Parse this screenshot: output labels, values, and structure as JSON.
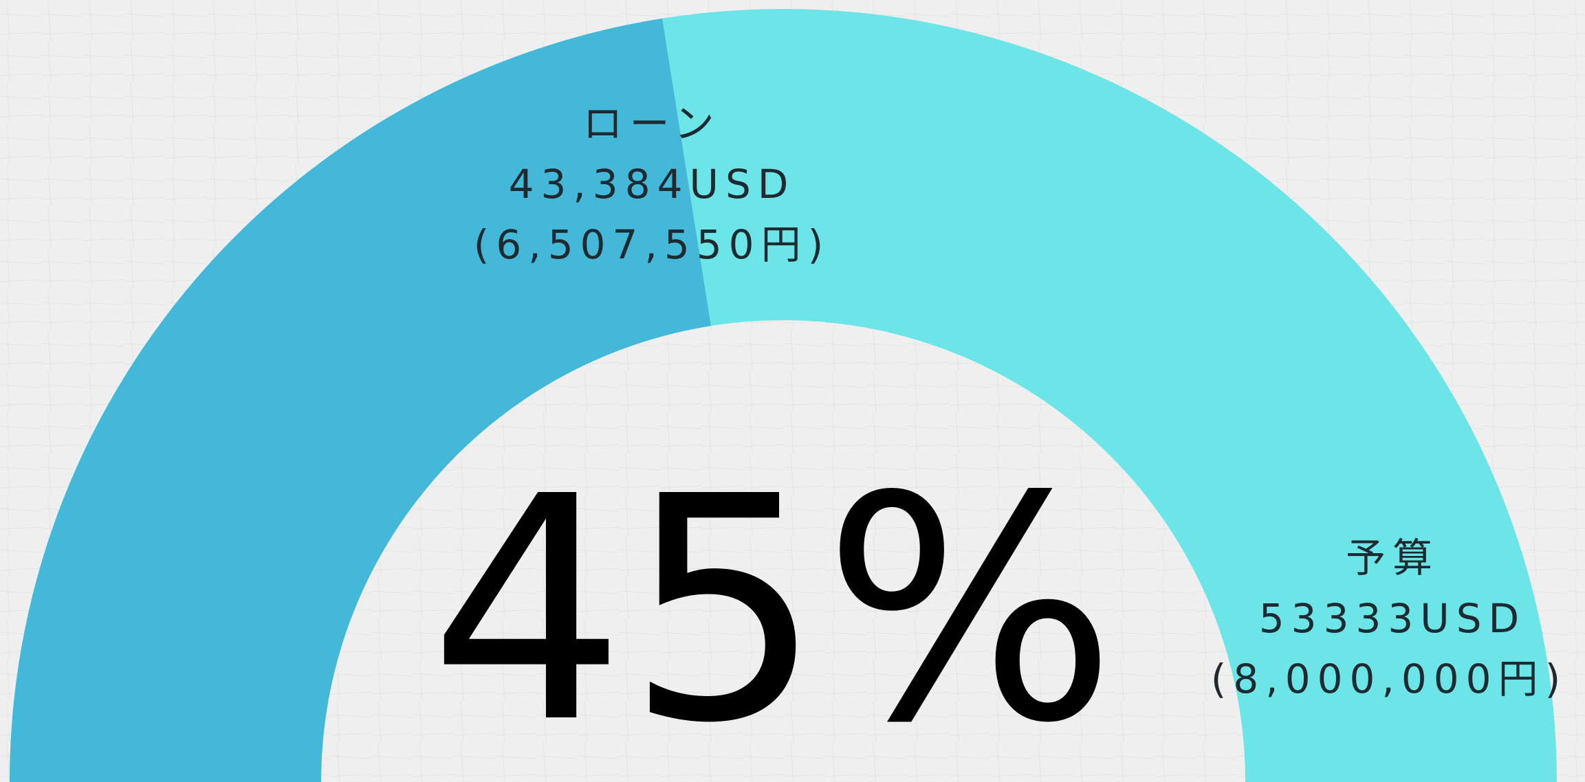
{
  "chart_data": {
    "type": "gauge",
    "values": [
      45
    ],
    "value_labels": [
      "45%"
    ],
    "ylim": [
      0,
      100
    ],
    "colors": [
      "#43b8d8",
      "#6ce5e8"
    ],
    "segments": [
      {
        "name": "ローン",
        "label": "43,384USD",
        "sub_label": "(6,507,550円)"
      },
      {
        "name": "予算",
        "label": "53333USD",
        "sub_label": "(8,000,000円)"
      }
    ]
  }
}
